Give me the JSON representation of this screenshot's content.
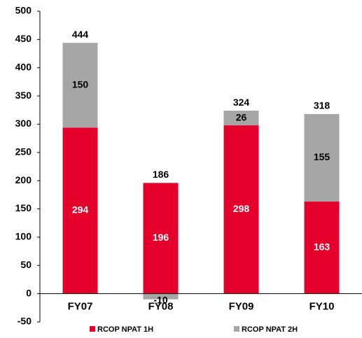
{
  "chart_data": {
    "type": "bar",
    "stacked": true,
    "categories": [
      "FY07",
      "FY08",
      "FY09",
      "FY10"
    ],
    "series": [
      {
        "name": "RCOP NPAT 1H",
        "color": "#e4002b",
        "values": [
          294,
          196,
          298,
          163
        ]
      },
      {
        "name": "RCOP NPAT 2H",
        "color": "#a6a6a6",
        "values": [
          150,
          -10,
          26,
          155
        ]
      }
    ],
    "totals": [
      444,
      186,
      324,
      318
    ],
    "ylim": [
      -50,
      500
    ],
    "yticks": [
      -50,
      0,
      50,
      100,
      150,
      200,
      250,
      300,
      350,
      400,
      450,
      500
    ],
    "legend": "bottom"
  }
}
